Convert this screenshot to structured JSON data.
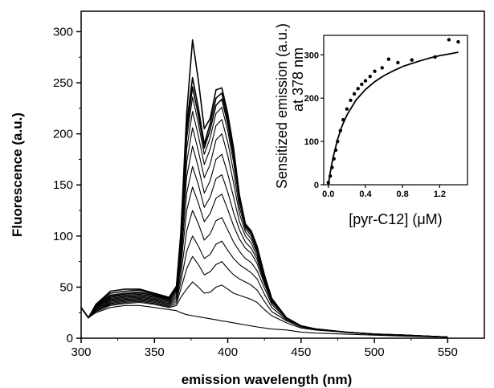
{
  "chart_data": [
    {
      "type": "line",
      "xlabel": "emission wavelength (nm)",
      "ylabel": "Fluorescence (a.u.)",
      "xlim": [
        300,
        575
      ],
      "ylim": [
        0,
        320
      ],
      "xticks": [
        300,
        350,
        400,
        450,
        500,
        550
      ],
      "yticks": [
        0,
        50,
        100,
        150,
        200,
        250,
        300
      ],
      "x": [
        300,
        305,
        310,
        320,
        330,
        340,
        350,
        360,
        365,
        368,
        372,
        376,
        380,
        384,
        388,
        392,
        396,
        400,
        404,
        408,
        412,
        416,
        420,
        425,
        430,
        440,
        450,
        460,
        480,
        500,
        520,
        550
      ],
      "series": [
        {
          "values": [
            30,
            20,
            25,
            30,
            32,
            32,
            30,
            28,
            27,
            25,
            23,
            22,
            21,
            20,
            19,
            18,
            17,
            16,
            15,
            14,
            13,
            12,
            11,
            10,
            9,
            8,
            6,
            5,
            4,
            3,
            2,
            1
          ]
        },
        {
          "values": [
            30,
            20,
            26,
            32,
            34,
            35,
            33,
            30,
            32,
            40,
            48,
            55,
            50,
            44,
            45,
            50,
            52,
            48,
            44,
            42,
            40,
            38,
            35,
            28,
            22,
            15,
            10,
            8,
            6,
            4,
            3,
            1
          ]
        },
        {
          "values": [
            30,
            20,
            27,
            33,
            35,
            36,
            34,
            31,
            34,
            48,
            68,
            80,
            72,
            62,
            65,
            72,
            75,
            68,
            62,
            58,
            55,
            52,
            47,
            36,
            26,
            17,
            11,
            8,
            6,
            4,
            3,
            1
          ]
        },
        {
          "values": [
            30,
            20,
            27,
            34,
            36,
            37,
            35,
            32,
            36,
            55,
            85,
            100,
            90,
            78,
            82,
            92,
            95,
            86,
            78,
            72,
            68,
            64,
            58,
            43,
            30,
            18,
            12,
            9,
            6,
            4,
            3,
            1
          ]
        },
        {
          "values": [
            30,
            20,
            28,
            35,
            37,
            38,
            36,
            33,
            38,
            62,
            105,
            125,
            112,
            96,
            102,
            115,
            118,
            106,
            94,
            85,
            78,
            74,
            66,
            49,
            33,
            19,
            12,
            9,
            6,
            4,
            3,
            1
          ]
        },
        {
          "values": [
            30,
            20,
            28,
            36,
            38,
            39,
            37,
            34,
            40,
            70,
            125,
            148,
            132,
            114,
            122,
            137,
            141,
            126,
            110,
            97,
            88,
            83,
            73,
            53,
            35,
            20,
            12,
            9,
            6,
            4,
            3,
            1
          ]
        },
        {
          "values": [
            30,
            20,
            29,
            37,
            39,
            40,
            38,
            35,
            42,
            76,
            142,
            168,
            150,
            128,
            138,
            156,
            160,
            143,
            123,
            106,
            94,
            88,
            77,
            55,
            36,
            20,
            12,
            9,
            6,
            4,
            3,
            1
          ]
        },
        {
          "values": [
            30,
            20,
            29,
            38,
            40,
            41,
            39,
            36,
            44,
            82,
            158,
            188,
            167,
            142,
            154,
            175,
            180,
            161,
            138,
            114,
            100,
            93,
            80,
            57,
            37,
            20,
            12,
            9,
            6,
            4,
            3,
            1
          ]
        },
        {
          "values": [
            30,
            20,
            30,
            39,
            41,
            42,
            40,
            37,
            46,
            88,
            172,
            206,
            183,
            157,
            170,
            194,
            200,
            179,
            152,
            122,
            104,
            97,
            83,
            58,
            37,
            20,
            12,
            9,
            6,
            4,
            3,
            1
          ]
        },
        {
          "values": [
            30,
            20,
            30,
            40,
            42,
            43,
            41,
            38,
            47,
            92,
            185,
            222,
            198,
            170,
            185,
            208,
            214,
            192,
            163,
            128,
            107,
            100,
            85,
            59,
            38,
            20,
            12,
            9,
            6,
            4,
            3,
            1
          ]
        },
        {
          "values": [
            30,
            20,
            31,
            41,
            43,
            44,
            42,
            38,
            48,
            95,
            195,
            236,
            210,
            180,
            196,
            220,
            226,
            203,
            172,
            133,
            109,
            102,
            87,
            60,
            38,
            20,
            12,
            9,
            6,
            4,
            3,
            1
          ]
        },
        {
          "values": [
            30,
            20,
            31,
            42,
            44,
            45,
            42,
            39,
            49,
            98,
            203,
            246,
            218,
            186,
            204,
            228,
            234,
            210,
            178,
            136,
            110,
            103,
            88,
            61,
            38,
            20,
            12,
            9,
            6,
            4,
            3,
            1
          ]
        },
        {
          "values": [
            30,
            20,
            32,
            44,
            46,
            47,
            43,
            39,
            50,
            100,
            210,
            255,
            225,
            190,
            210,
            235,
            240,
            215,
            182,
            138,
            111,
            104,
            89,
            61,
            38,
            20,
            12,
            9,
            6,
            4,
            3,
            1
          ]
        },
        {
          "values": [
            30,
            20,
            33,
            46,
            48,
            48,
            44,
            40,
            51,
            103,
            220,
            292,
            252,
            205,
            215,
            243,
            245,
            220,
            186,
            140,
            112,
            105,
            90,
            62,
            39,
            20,
            12,
            9,
            6,
            4,
            3,
            1
          ]
        }
      ]
    },
    {
      "type": "scatter",
      "xlabel": "[pyr-C12] (μM)",
      "ylabel_line1": "Sensitized emission",
      "ylabel_line2": "at 378 nm",
      "ylabel_units": "(a.u.)",
      "xlim": [
        -0.05,
        1.5
      ],
      "ylim": [
        0,
        345
      ],
      "xticks": [
        0.0,
        0.4,
        0.8,
        1.2
      ],
      "yticks": [
        0,
        100,
        200,
        300
      ],
      "xtick_labels": [
        "0.0",
        "0.4",
        "0.8",
        "1.2"
      ],
      "points_x": [
        0.0,
        0.02,
        0.04,
        0.06,
        0.08,
        0.1,
        0.13,
        0.16,
        0.2,
        0.24,
        0.28,
        0.32,
        0.36,
        0.4,
        0.45,
        0.5,
        0.58,
        0.65,
        0.75,
        0.9,
        1.15,
        1.3,
        1.4
      ],
      "points_y": [
        5,
        20,
        40,
        60,
        80,
        100,
        125,
        150,
        175,
        195,
        210,
        222,
        232,
        240,
        250,
        262,
        270,
        290,
        282,
        288,
        295,
        335,
        330
      ],
      "fit_x": [
        0.0,
        0.02,
        0.05,
        0.1,
        0.15,
        0.2,
        0.3,
        0.4,
        0.5,
        0.6,
        0.7,
        0.8,
        0.9,
        1.0,
        1.1,
        1.2,
        1.3,
        1.4
      ],
      "fit_y": [
        0,
        28,
        62,
        105,
        137,
        161,
        196,
        220,
        238,
        252,
        263,
        273,
        280,
        287,
        293,
        298,
        302,
        306
      ]
    }
  ]
}
